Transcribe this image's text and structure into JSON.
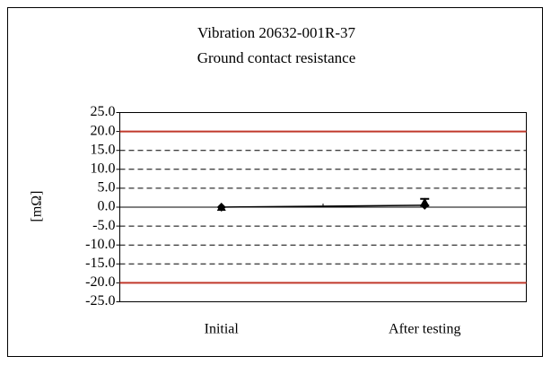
{
  "chart_data": {
    "type": "line",
    "title": [
      "Vibration 20632-001R-37",
      "Ground contact resistance"
    ],
    "y_label": "[mΩ]",
    "categories": [
      "Initial",
      "After testing"
    ],
    "series": [
      {
        "color": "#000000",
        "marker": "diamond",
        "line": true,
        "values": [
          0,
          0.5
        ]
      },
      {
        "color": "#000000",
        "marker": "triangle",
        "line": false,
        "values": [
          0,
          1.3
        ],
        "errors": [
          0,
          0.9
        ]
      }
    ],
    "limits": [
      20,
      -20
    ],
    "limit_color": "#c0392b",
    "ylim": [
      -25,
      25
    ],
    "yticks": [
      {
        "value": -25,
        "label": "-25.0"
      },
      {
        "value": -20,
        "label": "-20.0"
      },
      {
        "value": -15,
        "label": "-15.0"
      },
      {
        "value": -10,
        "label": "-10.0"
      },
      {
        "value": -5,
        "label": "-5.0"
      },
      {
        "value": 0,
        "label": "0.0"
      },
      {
        "value": 5,
        "label": "5.0"
      },
      {
        "value": 10,
        "label": "10.0"
      },
      {
        "value": 15,
        "label": "15.0"
      },
      {
        "value": 20,
        "label": "20.0"
      },
      {
        "value": 25,
        "label": "25.0"
      }
    ],
    "grid": true
  }
}
